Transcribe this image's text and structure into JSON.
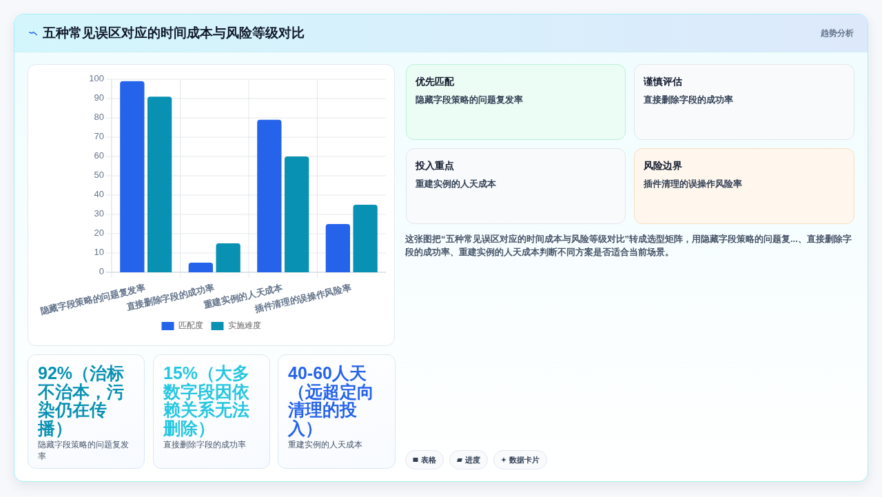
{
  "chart_data": [
    {
      "type": "other",
      "title": "五种常见误区对应的时间成本与风险等级对比",
      "subtitle": "趋势分析"
    },
    {
      "type": "bar",
      "categories": [
        "隐藏字段策略的问题复发率",
        "直接删除字段的成功率",
        "重建实例的人天成本",
        "插件清理的误操作风险率"
      ],
      "series": [
        {
          "name": "匹配度",
          "color": "#2563eb",
          "values": [
            99,
            5,
            79,
            25
          ]
        },
        {
          "name": "实施难度",
          "color": "#0891b2",
          "values": [
            91,
            15,
            60,
            35
          ]
        }
      ],
      "ylim": [
        0,
        100
      ],
      "yticks": [
        0,
        10,
        20,
        30,
        40,
        50,
        60,
        70,
        80,
        90,
        100
      ],
      "grid": true,
      "legend": "bottom"
    },
    {
      "type": "other",
      "title": "优先匹配",
      "annotations": [
        "隐藏字段策略的问题复发率"
      ],
      "color": "#ecfdf5"
    },
    {
      "type": "other",
      "title": "谨慎评估",
      "annotations": [
        "直接删除字段的成功率"
      ],
      "color": "#f8fafc"
    },
    {
      "type": "other",
      "title": "投入重点",
      "annotations": [
        "重建实例的人天成本"
      ],
      "color": "#f8fafc"
    },
    {
      "type": "other",
      "title": "风险边界",
      "annotations": [
        "插件清理的误操作风险率"
      ],
      "color": "#fff7ed"
    },
    {
      "type": "other",
      "annotations": [
        "这张图把“五种常见误区对应的时间成本与风险等级对比”转成选型矩阵，用隐藏字段策略的问题复...、直接删除字段的成功率、重建实例的人天成本判断不同方案是否适合当前场景。"
      ]
    },
    {
      "type": "other",
      "title": "92%（治标不治本，污染仍在传播）",
      "annotations": [
        "隐藏字段策略的问题复发率"
      ],
      "color": "#0891b2"
    },
    {
      "type": "other",
      "title": "15%（大多数字段因依赖关系无法删除）",
      "annotations": [
        "直接删除字段的成功率"
      ],
      "color": "#26c6e0"
    },
    {
      "type": "other",
      "title": "40-60人天（远超定向清理的投入）",
      "annotations": [
        "重建实例的人天成本"
      ],
      "color": "#2563eb"
    },
    {
      "type": "other",
      "annotations": [
        "表格",
        "进度",
        "数据卡片"
      ]
    }
  ]
}
